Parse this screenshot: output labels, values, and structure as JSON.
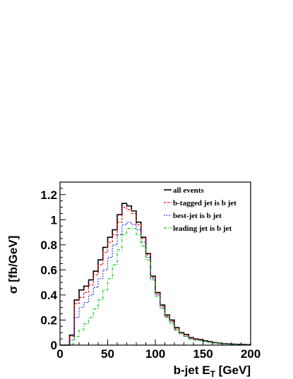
{
  "chart_data": {
    "type": "line",
    "style": "step-histogram",
    "xlabel": "b-jet E",
    "xlabel_sub": "T",
    "xlabel_unit": " [GeV]",
    "ylabel": "σ [fb/GeV]",
    "xlim": [
      0,
      200
    ],
    "ylim": [
      0,
      1.3
    ],
    "x_ticks": [
      0,
      50,
      100,
      150,
      200
    ],
    "y_ticks": [
      0,
      0.2,
      0.4,
      0.6,
      0.8,
      1,
      1.2
    ],
    "y_tick_labels": [
      "0",
      "0.2",
      "0.4",
      "0.6",
      "0.8",
      "1",
      "1.2"
    ],
    "grid": false,
    "legend_position": "top-right",
    "bin_width": 5,
    "bin_edges": [
      0,
      5,
      10,
      15,
      20,
      25,
      30,
      35,
      40,
      45,
      50,
      55,
      60,
      65,
      70,
      75,
      80,
      85,
      90,
      95,
      100,
      105,
      110,
      115,
      120,
      125,
      130,
      135,
      140,
      145,
      150,
      155,
      160,
      165,
      170,
      175,
      180,
      185,
      190,
      195,
      200
    ],
    "series": [
      {
        "name": "all events",
        "color": "#000000",
        "dash": "",
        "width": 1.6,
        "values": [
          0,
          0,
          0.08,
          0.36,
          0.44,
          0.47,
          0.52,
          0.59,
          0.68,
          0.78,
          0.86,
          0.92,
          1.04,
          1.13,
          1.11,
          1.07,
          0.98,
          0.86,
          0.73,
          0.55,
          0.42,
          0.32,
          0.24,
          0.2,
          0.14,
          0.1,
          0.085,
          0.06,
          0.05,
          0.045,
          0.035,
          0.028,
          0.02,
          0.015,
          0.012,
          0.01,
          0.008,
          0.006,
          0.005,
          0.004
        ]
      },
      {
        "name": "b-tagged jet is b jet",
        "color": "#ff0000",
        "dash": "3,2",
        "width": 1.2,
        "values": [
          0,
          0,
          0.07,
          0.33,
          0.38,
          0.42,
          0.48,
          0.56,
          0.64,
          0.74,
          0.82,
          0.88,
          0.98,
          1.1,
          1.08,
          1.05,
          0.96,
          0.85,
          0.72,
          0.54,
          0.41,
          0.31,
          0.23,
          0.19,
          0.13,
          0.1,
          0.08,
          0.058,
          0.048,
          0.043,
          0.033,
          0.026,
          0.019,
          0.014,
          0.011,
          0.009,
          0.007,
          0.005,
          0.004,
          0.003
        ]
      },
      {
        "name": "best-jet is b jet",
        "color": "#0000ff",
        "dash": "1.5,2",
        "width": 1.2,
        "values": [
          0,
          0,
          0.04,
          0.22,
          0.3,
          0.34,
          0.4,
          0.46,
          0.53,
          0.6,
          0.7,
          0.8,
          0.88,
          0.96,
          0.98,
          0.96,
          0.92,
          0.82,
          0.7,
          0.53,
          0.4,
          0.3,
          0.22,
          0.18,
          0.12,
          0.09,
          0.07,
          0.05,
          0.042,
          0.038,
          0.03,
          0.024,
          0.017,
          0.013,
          0.01,
          0.008,
          0.006,
          0.005,
          0.004,
          0.003
        ]
      },
      {
        "name": "leading jet is b jet",
        "color": "#00cc00",
        "dash": "4,2,1,2",
        "width": 1.2,
        "values": [
          0,
          0,
          0.01,
          0.07,
          0.12,
          0.17,
          0.22,
          0.29,
          0.36,
          0.44,
          0.53,
          0.64,
          0.76,
          0.88,
          0.93,
          0.93,
          0.88,
          0.79,
          0.68,
          0.52,
          0.39,
          0.29,
          0.22,
          0.17,
          0.12,
          0.09,
          0.07,
          0.05,
          0.04,
          0.036,
          0.028,
          0.022,
          0.016,
          0.012,
          0.009,
          0.007,
          0.006,
          0.004,
          0.003,
          0.002
        ]
      }
    ]
  }
}
